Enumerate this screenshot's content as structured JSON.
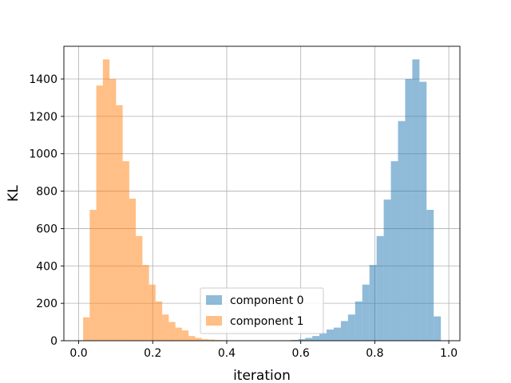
{
  "chart_data": {
    "type": "histogram",
    "title": "",
    "xlabel": "iteration",
    "ylabel": "KL",
    "xlim": [
      -0.04,
      1.03
    ],
    "ylim": [
      0,
      1575
    ],
    "xticks": [
      0.0,
      0.2,
      0.4,
      0.6,
      0.8,
      1.0
    ],
    "xtick_labels": [
      "0.0",
      "0.2",
      "0.4",
      "0.6",
      "0.8",
      "1.0"
    ],
    "yticks": [
      0,
      200,
      400,
      600,
      800,
      1000,
      1200,
      1400
    ],
    "ytick_labels": [
      "0",
      "200",
      "400",
      "600",
      "800",
      "1000",
      "1200",
      "1400"
    ],
    "grid": true,
    "legend_position": "lower center",
    "series": [
      {
        "name": "component 0",
        "color": "#1f77b4",
        "alpha": 0.5,
        "bin_edges": [
          0.554,
          0.5733,
          0.5926,
          0.6119,
          0.6312,
          0.6505,
          0.6698,
          0.6891,
          0.7084,
          0.7277,
          0.747,
          0.7663,
          0.7856,
          0.8049,
          0.8242,
          0.8435,
          0.8628,
          0.8821,
          0.9014,
          0.9207,
          0.94,
          0.9593,
          0.9786,
          0.998
        ],
        "counts": [
          2,
          4,
          8,
          15,
          25,
          40,
          60,
          70,
          105,
          140,
          210,
          300,
          405,
          560,
          755,
          960,
          1175,
          1400,
          1505,
          1385,
          700,
          130,
          0
        ]
      },
      {
        "name": "component 1",
        "color": "#ff7f0e",
        "alpha": 0.5,
        "bin_edges": [
          0.012,
          0.0298,
          0.0476,
          0.0654,
          0.0832,
          0.101,
          0.1188,
          0.1366,
          0.1544,
          0.1722,
          0.19,
          0.2078,
          0.2256,
          0.2434,
          0.2612,
          0.279,
          0.2968,
          0.3146,
          0.3324,
          0.3502,
          0.368,
          0.3858,
          0.4036,
          0.4214,
          0.4392
        ],
        "counts": [
          125,
          700,
          1365,
          1505,
          1400,
          1260,
          960,
          760,
          560,
          405,
          300,
          210,
          140,
          100,
          70,
          55,
          25,
          15,
          8,
          6,
          4,
          3,
          2,
          1
        ]
      }
    ]
  }
}
